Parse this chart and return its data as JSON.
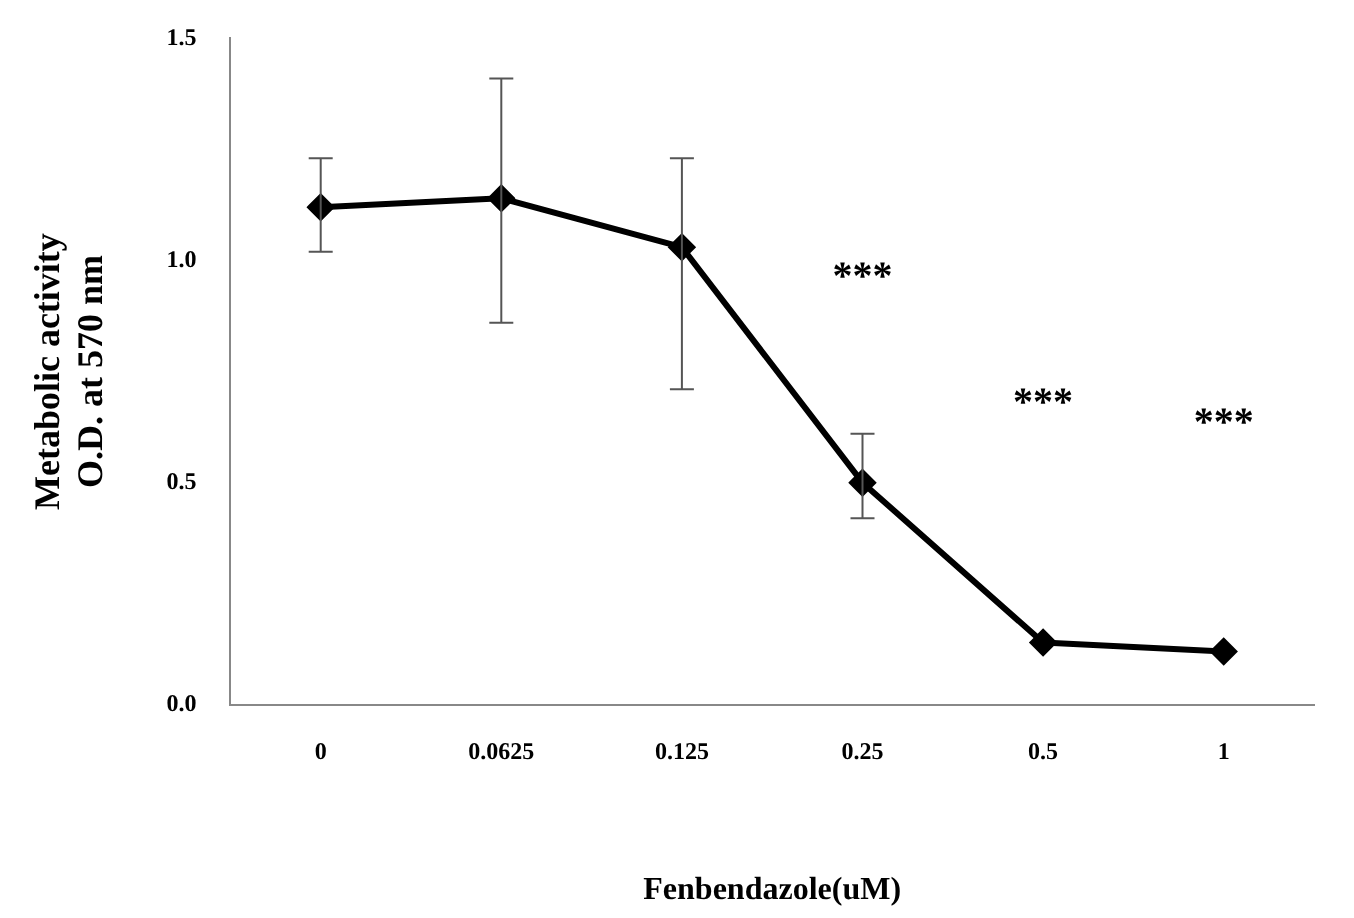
{
  "chart_data": {
    "type": "line",
    "xlabel": "Fenbendazole(uM)",
    "ylabel": "Metabolic activity\nO.D. at 570 nm",
    "categories": [
      "0",
      "0.0625",
      "0.125",
      "0.25",
      "0.5",
      "1"
    ],
    "series": [
      {
        "color": "#000000",
        "values": [
          1.12,
          1.14,
          1.03,
          0.5,
          0.14,
          0.12
        ],
        "errors": [
          [
            1.02,
            1.23
          ],
          [
            0.86,
            1.41
          ],
          [
            0.71,
            1.23
          ],
          [
            0.42,
            0.61
          ],
          null,
          null
        ]
      }
    ],
    "ylim": [
      0,
      1.5
    ],
    "yticks": [
      {
        "value": 0,
        "label": "0.0"
      },
      {
        "value": 0.5,
        "label": "0.5"
      },
      {
        "value": 1,
        "label": "1.0"
      },
      {
        "value": 1.5,
        "label": "1.5"
      }
    ],
    "grid": false,
    "legend": false,
    "marker": "diamond",
    "line_style": "solid",
    "annotations": [
      "***",
      "***",
      "***"
    ]
  }
}
